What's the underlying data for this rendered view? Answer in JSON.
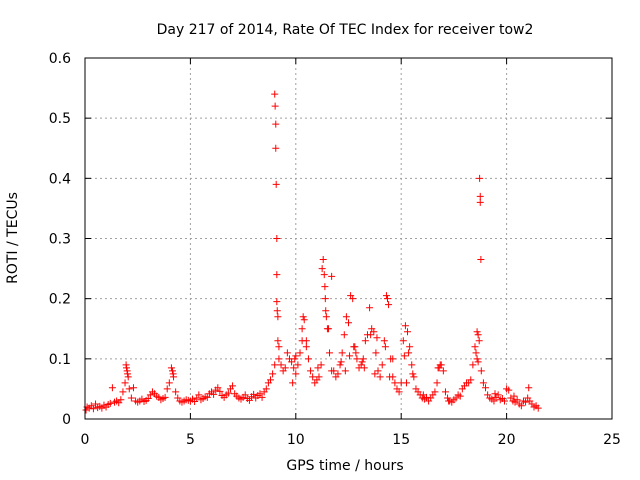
{
  "chart_data": {
    "type": "scatter",
    "title": "Day 217 of 2014, Rate Of TEC Index for receiver tow2",
    "xlabel": "GPS time / hours",
    "ylabel": "ROTI / TECUs",
    "xlim": [
      0,
      25
    ],
    "ylim": [
      0,
      0.6
    ],
    "xticks": [
      0,
      5,
      10,
      15,
      20,
      25
    ],
    "yticks": [
      0,
      0.1,
      0.2,
      0.3,
      0.4,
      0.5,
      0.6
    ],
    "xtick_labels": [
      "0",
      "5",
      "10",
      "15",
      "20",
      "25"
    ],
    "ytick_labels": [
      "0",
      "0.1",
      "0.2",
      "0.3",
      "0.4",
      "0.5",
      "0.6"
    ],
    "grid": true,
    "marker": "+",
    "color": "#ff0000",
    "series": [
      {
        "x": [
          0.05,
          0.1,
          0.2,
          0.3,
          0.4,
          0.5,
          0.6,
          0.7,
          0.8,
          0.9,
          1.0,
          1.1,
          1.2,
          1.3,
          1.4,
          1.5,
          1.6,
          1.7,
          1.8,
          1.9,
          1.95,
          1.97,
          2.0,
          2.02,
          2.05,
          2.1,
          2.2,
          2.3,
          2.4,
          2.5,
          2.6,
          2.7,
          2.8,
          2.9,
          3.0,
          3.1,
          3.2,
          3.3,
          3.4,
          3.5,
          3.6,
          3.7,
          3.8,
          3.9,
          4.0,
          4.1,
          4.15,
          4.18,
          4.2,
          4.3,
          4.4,
          4.5,
          4.6,
          4.7,
          4.8,
          4.9,
          5.0,
          5.1,
          5.2,
          5.3,
          5.4,
          5.5,
          5.6,
          5.7,
          5.8,
          5.9,
          6.0,
          6.1,
          6.2,
          6.3,
          6.4,
          6.5,
          6.6,
          6.7,
          6.8,
          6.9,
          7.0,
          7.1,
          7.2,
          7.3,
          7.4,
          7.5,
          7.6,
          7.7,
          7.8,
          7.9,
          8.0,
          8.1,
          8.2,
          8.3,
          8.4,
          8.5,
          8.6,
          8.7,
          8.8,
          8.9,
          9.0,
          9.0,
          9.02,
          9.05,
          9.05,
          9.07,
          9.1,
          9.1,
          9.1,
          9.12,
          9.15,
          9.15,
          9.2,
          9.2,
          9.3,
          9.4,
          9.5,
          9.6,
          9.7,
          9.8,
          9.9,
          10.0,
          10.1,
          10.2,
          10.3,
          10.4,
          10.5,
          10.6,
          10.7,
          10.8,
          10.9,
          11.0,
          11.1,
          11.2,
          11.25,
          11.3,
          11.35,
          11.38,
          11.4,
          11.42,
          11.45,
          11.5,
          11.6,
          11.7,
          11.8,
          11.9,
          12.0,
          12.1,
          12.2,
          12.3,
          12.4,
          12.5,
          12.6,
          12.7,
          12.8,
          12.9,
          13.0,
          13.1,
          13.2,
          13.3,
          13.4,
          13.5,
          13.6,
          13.7,
          13.8,
          13.9,
          14.0,
          14.1,
          14.2,
          14.3,
          14.35,
          14.4,
          14.5,
          14.6,
          14.7,
          14.8,
          14.9,
          15.0,
          15.1,
          15.2,
          15.3,
          15.4,
          15.5,
          15.6,
          15.7,
          15.8,
          15.9,
          16.0,
          16.1,
          16.2,
          16.3,
          16.4,
          16.5,
          16.6,
          16.7,
          16.8,
          16.9,
          17.0,
          17.1,
          17.2,
          17.3,
          17.4,
          17.5,
          17.6,
          17.7,
          17.8,
          17.9,
          18.0,
          18.1,
          18.2,
          18.3,
          18.4,
          18.5,
          18.6,
          18.65,
          18.7,
          18.72,
          18.75,
          18.75,
          18.78,
          18.8,
          18.9,
          19.0,
          19.1,
          19.2,
          19.3,
          19.4,
          19.5,
          19.6,
          19.7,
          19.8,
          19.9,
          20.0,
          20.1,
          20.2,
          20.3,
          20.4,
          20.5,
          20.6,
          20.7,
          20.8,
          20.9,
          21.0,
          21.1,
          21.2,
          21.3,
          21.4,
          21.5,
          10.0,
          9.95,
          10.3,
          10.5,
          11.05,
          11.55,
          12.35,
          12.75,
          12.85,
          13.15,
          13.55,
          13.85,
          14.25,
          14.6,
          15.15,
          15.35,
          15.55,
          16.75,
          16.85,
          18.55,
          18.6,
          18.65,
          13.75,
          10.35,
          9.85,
          11.7,
          12.15,
          12.55,
          13.25,
          14.45,
          15.25,
          16.05,
          17.25,
          19.45,
          20.35,
          21.05
        ],
        "y": [
          0.015,
          0.02,
          0.018,
          0.022,
          0.017,
          0.025,
          0.019,
          0.021,
          0.018,
          0.023,
          0.02,
          0.024,
          0.026,
          0.052,
          0.028,
          0.03,
          0.027,
          0.032,
          0.045,
          0.06,
          0.09,
          0.085,
          0.08,
          0.075,
          0.07,
          0.05,
          0.035,
          0.052,
          0.03,
          0.028,
          0.03,
          0.033,
          0.029,
          0.031,
          0.034,
          0.04,
          0.045,
          0.042,
          0.038,
          0.036,
          0.032,
          0.034,
          0.036,
          0.05,
          0.06,
          0.085,
          0.08,
          0.075,
          0.07,
          0.045,
          0.035,
          0.03,
          0.028,
          0.03,
          0.032,
          0.031,
          0.03,
          0.033,
          0.029,
          0.035,
          0.04,
          0.032,
          0.034,
          0.037,
          0.036,
          0.042,
          0.045,
          0.041,
          0.048,
          0.052,
          0.046,
          0.039,
          0.036,
          0.04,
          0.043,
          0.05,
          0.055,
          0.042,
          0.038,
          0.035,
          0.033,
          0.036,
          0.04,
          0.034,
          0.031,
          0.037,
          0.041,
          0.035,
          0.039,
          0.042,
          0.036,
          0.045,
          0.05,
          0.06,
          0.065,
          0.075,
          0.09,
          0.54,
          0.52,
          0.49,
          0.45,
          0.39,
          0.3,
          0.24,
          0.195,
          0.18,
          0.17,
          0.13,
          0.12,
          0.1,
          0.09,
          0.08,
          0.085,
          0.11,
          0.1,
          0.095,
          0.085,
          0.075,
          0.09,
          0.11,
          0.15,
          0.165,
          0.13,
          0.1,
          0.08,
          0.07,
          0.06,
          0.065,
          0.07,
          0.09,
          0.25,
          0.265,
          0.24,
          0.22,
          0.2,
          0.18,
          0.17,
          0.15,
          0.11,
          0.237,
          0.08,
          0.07,
          0.075,
          0.09,
          0.11,
          0.14,
          0.17,
          0.16,
          0.205,
          0.2,
          0.12,
          0.1,
          0.085,
          0.09,
          0.1,
          0.13,
          0.14,
          0.185,
          0.15,
          0.145,
          0.11,
          0.08,
          0.07,
          0.09,
          0.13,
          0.205,
          0.2,
          0.19,
          0.1,
          0.07,
          0.06,
          0.05,
          0.045,
          0.06,
          0.13,
          0.155,
          0.145,
          0.12,
          0.09,
          0.07,
          0.05,
          0.045,
          0.04,
          0.035,
          0.033,
          0.036,
          0.03,
          0.035,
          0.04,
          0.045,
          0.06,
          0.085,
          0.09,
          0.08,
          0.045,
          0.035,
          0.03,
          0.028,
          0.032,
          0.035,
          0.04,
          0.038,
          0.05,
          0.055,
          0.06,
          0.06,
          0.065,
          0.09,
          0.12,
          0.145,
          0.14,
          0.13,
          0.4,
          0.37,
          0.36,
          0.265,
          0.08,
          0.06,
          0.052,
          0.04,
          0.035,
          0.033,
          0.03,
          0.036,
          0.04,
          0.032,
          0.034,
          0.03,
          0.05,
          0.048,
          0.035,
          0.03,
          0.028,
          0.032,
          0.025,
          0.022,
          0.03,
          0.028,
          0.035,
          0.03,
          0.025,
          0.02,
          0.022,
          0.018,
          0.105,
          0.1,
          0.13,
          0.12,
          0.085,
          0.15,
          0.08,
          0.12,
          0.11,
          0.095,
          0.14,
          0.135,
          0.12,
          0.1,
          0.105,
          0.11,
          0.075,
          0.085,
          0.09,
          0.11,
          0.1,
          0.095,
          0.075,
          0.17,
          0.06,
          0.08,
          0.095,
          0.105,
          0.085,
          0.07,
          0.06,
          0.04,
          0.03,
          0.042,
          0.038,
          0.052
        ]
      }
    ]
  }
}
